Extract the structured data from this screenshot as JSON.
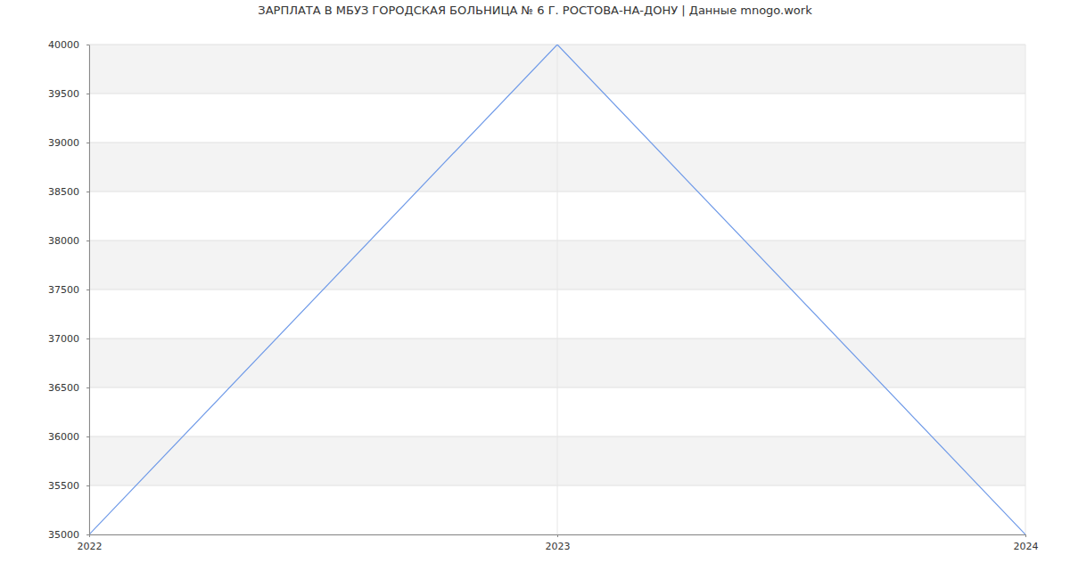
{
  "chart_data": {
    "type": "line",
    "title": "ЗАРПЛАТА В МБУЗ ГОРОДСКАЯ БОЛЬНИЦА № 6 Г. РОСТОВА-НА-ДОНУ | Данные mnogo.work",
    "x": [
      2022,
      2023,
      2024
    ],
    "values": [
      35000,
      40000,
      35000
    ],
    "color": "#6f9ae8",
    "xlim": [
      2022,
      2024
    ],
    "xticks": [
      2022,
      2023,
      2024
    ],
    "ylim": [
      35000,
      40000
    ],
    "yticks": [
      35000,
      35500,
      36000,
      36500,
      37000,
      37500,
      38000,
      38500,
      39000,
      39500,
      40000
    ],
    "grid": true
  }
}
